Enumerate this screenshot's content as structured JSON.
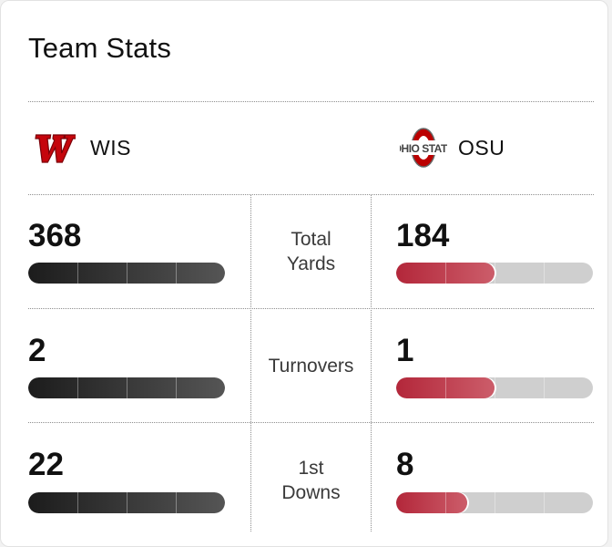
{
  "card": {
    "title": "Team Stats"
  },
  "teams": {
    "away": {
      "abbr": "WIS",
      "logo": "wisconsin-w-logo",
      "color": "#c5050c"
    },
    "home": {
      "abbr": "OSU",
      "logo": "ohio-state-logo",
      "color": "#bb0000"
    }
  },
  "stats": [
    {
      "label_line1": "Total",
      "label_line2": "Yards",
      "away": "368",
      "home": "184",
      "away_share": 1.0,
      "home_share": 0.5
    },
    {
      "label_line1": "Turnovers",
      "label_line2": "",
      "away": "2",
      "home": "1",
      "away_share": 1.0,
      "home_share": 0.5
    },
    {
      "label_line1": "1st",
      "label_line2": "Downs",
      "away": "22",
      "home": "8",
      "away_share": 1.0,
      "home_share": 0.36
    }
  ]
}
